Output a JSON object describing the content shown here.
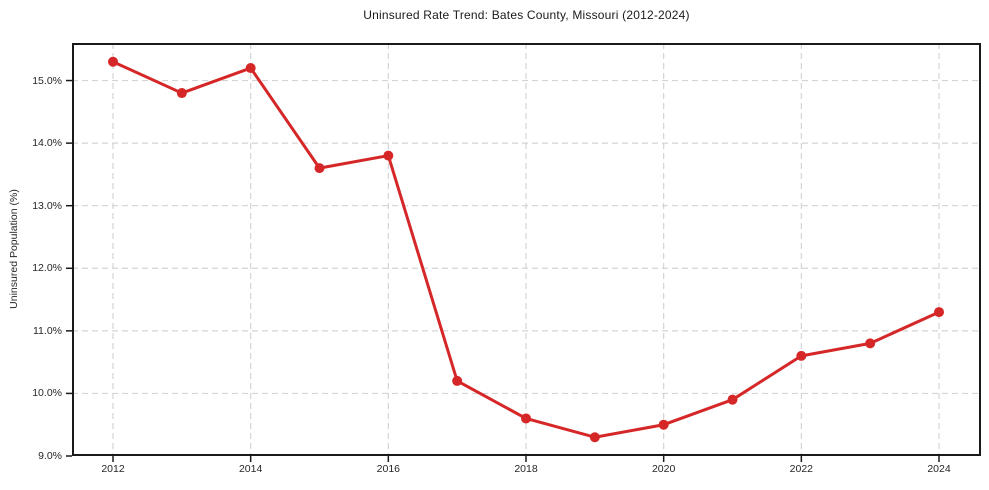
{
  "chart_data": {
    "type": "line",
    "title": "Uninsured Rate Trend: Bates County, Missouri (2012-2024)",
    "xlabel": "",
    "ylabel": "Uninsured Population (%)",
    "categories": [
      2012,
      2013,
      2014,
      2015,
      2016,
      2017,
      2018,
      2019,
      2020,
      2021,
      2022,
      2023,
      2024
    ],
    "values": [
      15.3,
      14.8,
      15.2,
      13.6,
      13.8,
      10.2,
      9.6,
      9.3,
      9.5,
      9.9,
      10.6,
      10.8,
      11.3
    ],
    "ylim": [
      9.0,
      15.6
    ],
    "yticks": [
      9.0,
      10.0,
      11.0,
      12.0,
      13.0,
      14.0,
      15.0
    ],
    "ytick_labels": [
      "9.0%",
      "10.0%",
      "11.0%",
      "12.0%",
      "13.0%",
      "14.0%",
      "15.0%"
    ],
    "xticks": [
      2012,
      2014,
      2016,
      2018,
      2020,
      2022,
      2024
    ],
    "xtick_labels": [
      "2012",
      "2014",
      "2016",
      "2018",
      "2020",
      "2022",
      "2024"
    ],
    "grid": "dashed",
    "legend": false,
    "line_color": "#d62728",
    "marker_color": "#d62728",
    "grid_color": "#d4d4d4",
    "axis_color": "#1a1a1a",
    "text_color": "#262626"
  }
}
